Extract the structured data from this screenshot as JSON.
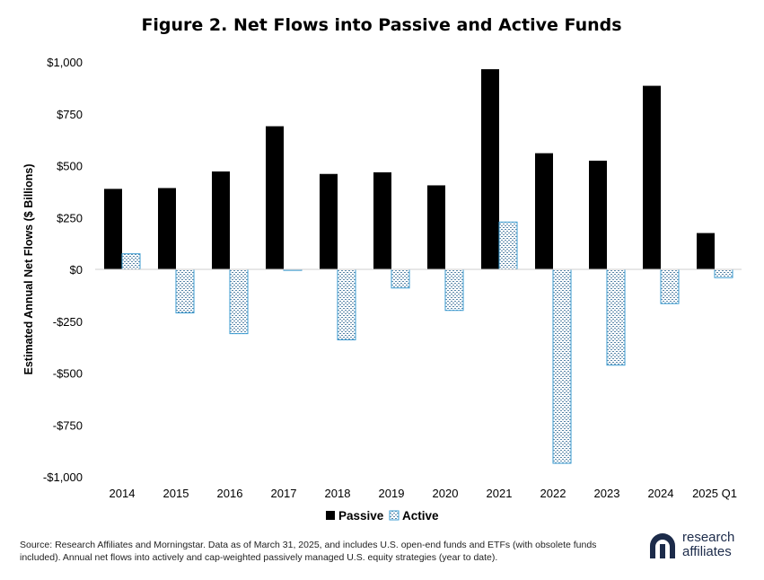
{
  "chart_data": {
    "type": "bar",
    "title": "Figure 2. Net Flows into Passive and Active Funds",
    "ylabel": "Estimated Annual Net Flows ($ Billions)",
    "xlabel": "",
    "categories": [
      "2014",
      "2015",
      "2016",
      "2017",
      "2018",
      "2019",
      "2020",
      "2021",
      "2022",
      "2023",
      "2024",
      "2025 Q1"
    ],
    "series": [
      {
        "name": "Passive",
        "values": [
          388,
          392,
          472,
          690,
          460,
          468,
          405,
          965,
          560,
          524,
          885,
          175
        ]
      },
      {
        "name": "Active",
        "values": [
          75,
          -210,
          -310,
          -5,
          -340,
          -90,
          -198,
          228,
          -935,
          -462,
          -165,
          -40
        ]
      }
    ],
    "ylim": [
      -1000,
      1000
    ],
    "yticks": [
      1000,
      750,
      500,
      250,
      0,
      -250,
      -500,
      -750,
      -1000
    ],
    "ytick_labels": [
      "$1,000",
      "$750",
      "$500",
      "$250",
      "$0",
      "-$250",
      "-$500",
      "-$750",
      "-$1,000"
    ],
    "grid": false,
    "legend": "bottom-center",
    "colors": {
      "passive": "#000000",
      "active_outline": "#3a9bd1",
      "active_pattern": "#5a86a8"
    }
  },
  "source_note": "Source: Research Affiliates and Morningstar. Data as of March 31, 2025, and includes U.S. open-end funds and ETFs (with obsolete funds included). Annual net flows into actively and cap-weighted passively managed U.S. equity strategies (year to date).",
  "logo": {
    "line1": "research",
    "line2": "affiliates",
    "icon": "research-affiliates-logo-mark"
  }
}
